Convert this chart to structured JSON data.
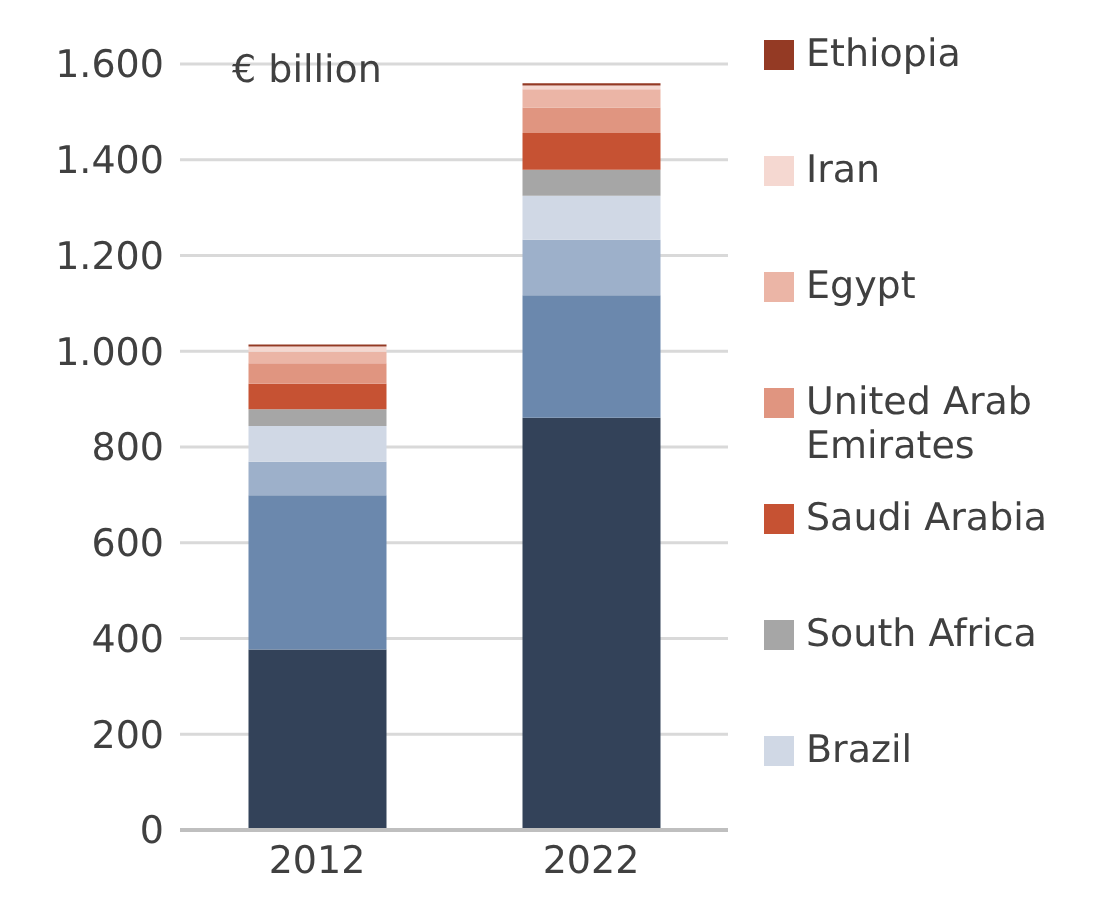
{
  "chart_data": {
    "type": "bar",
    "stacked": true,
    "ylabel": "€ billion",
    "categories": [
      "2012",
      "2022"
    ],
    "series": [
      {
        "color": "#334259",
        "values": [
          377,
          861
        ]
      },
      {
        "color": "#6b88ad",
        "values": [
          322,
          256
        ]
      },
      {
        "color": "#9db0ca",
        "values": [
          70,
          116
        ]
      },
      {
        "name": "Brazil",
        "color": "#d0d8e5",
        "values": [
          75,
          92
        ]
      },
      {
        "name": "South Africa",
        "color": "#a6a6a6",
        "values": [
          35,
          54
        ]
      },
      {
        "name": "Saudi Arabia",
        "color": "#c65233",
        "values": [
          53,
          77
        ]
      },
      {
        "name": "United Arab Emirates",
        "color": "#e09580",
        "values": [
          43,
          53
        ]
      },
      {
        "name": "Egypt",
        "color": "#ebb5a6",
        "values": [
          24,
          38
        ]
      },
      {
        "name": "Iran",
        "color": "#f5d8d1",
        "values": [
          11,
          8
        ]
      },
      {
        "name": "Ethiopia",
        "color": "#943a24",
        "values": [
          4,
          5
        ]
      }
    ],
    "ylim": [
      0,
      1600
    ],
    "yticks": [
      0,
      200,
      400,
      600,
      800,
      {
        "value": 1000,
        "label": "1.000"
      },
      {
        "value": 1200,
        "label": "1.200"
      },
      {
        "value": 1400,
        "label": "1.400"
      },
      {
        "value": 1600,
        "label": "1.600"
      }
    ],
    "grid": "y",
    "legend": "right"
  }
}
